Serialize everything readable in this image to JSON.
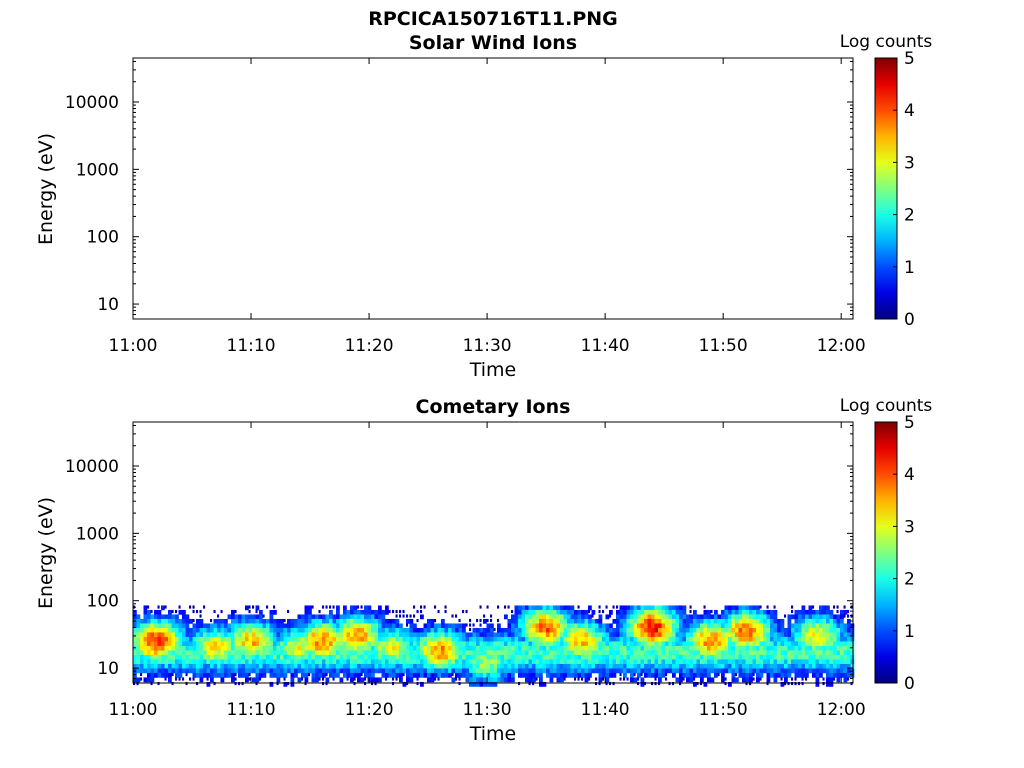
{
  "figure_title": "RPCICA150716T11.PNG",
  "chart_data": [
    {
      "type": "heatmap",
      "title": "Solar Wind Ions",
      "xlabel": "Time",
      "ylabel": "Energy (eV)",
      "x_ticks": [
        "11:00",
        "11:10",
        "11:20",
        "11:30",
        "11:40",
        "11:50",
        "12:00"
      ],
      "y_ticks": [
        "10",
        "100",
        "1000",
        "10000"
      ],
      "y_tick_values": [
        10,
        100,
        1000,
        10000
      ],
      "y_scale": "log",
      "ylim": [
        6,
        45000
      ],
      "xlim": [
        "11:00",
        "12:01"
      ],
      "colorbar": {
        "label": "Log counts",
        "ticks": [
          "0",
          "1",
          "2",
          "3",
          "4",
          "5"
        ],
        "range": [
          0,
          5
        ],
        "colormap": "jet"
      },
      "data": "no counts (empty)",
      "energy_band_top": null
    },
    {
      "type": "heatmap",
      "title": "Cometary Ions",
      "xlabel": "Time",
      "ylabel": "Energy (eV)",
      "x_ticks": [
        "11:00",
        "11:10",
        "11:20",
        "11:30",
        "11:40",
        "11:50",
        "12:00"
      ],
      "y_ticks": [
        "10",
        "100",
        "1000",
        "10000"
      ],
      "y_tick_values": [
        10,
        100,
        1000,
        10000
      ],
      "y_scale": "log",
      "ylim": [
        6,
        45000
      ],
      "xlim": [
        "11:00",
        "12:01"
      ],
      "colorbar": {
        "label": "Log counts",
        "ticks": [
          "0",
          "1",
          "2",
          "3",
          "4",
          "5"
        ],
        "range": [
          0,
          5
        ],
        "colormap": "jet"
      },
      "energy_band_top": 85,
      "energy_band_bottom": 6,
      "peaks_log_counts": [
        {
          "time": "11:02",
          "energy": 25,
          "value": 4.2
        },
        {
          "time": "11:07",
          "energy": 20,
          "value": 3.2
        },
        {
          "time": "11:10",
          "energy": 25,
          "value": 3.5
        },
        {
          "time": "11:14",
          "energy": 20,
          "value": 3.0
        },
        {
          "time": "11:16",
          "energy": 25,
          "value": 3.8
        },
        {
          "time": "11:19",
          "energy": 30,
          "value": 3.6
        },
        {
          "time": "11:22",
          "energy": 20,
          "value": 3.0
        },
        {
          "time": "11:26",
          "energy": 18,
          "value": 3.7
        },
        {
          "time": "11:30",
          "energy": 12,
          "value": 2.6
        },
        {
          "time": "11:35",
          "energy": 40,
          "value": 3.9
        },
        {
          "time": "11:38",
          "energy": 25,
          "value": 3.5
        },
        {
          "time": "11:44",
          "energy": 40,
          "value": 4.3
        },
        {
          "time": "11:49",
          "energy": 25,
          "value": 3.8
        },
        {
          "time": "11:52",
          "energy": 35,
          "value": 3.9
        },
        {
          "time": "11:58",
          "energy": 30,
          "value": 3.2
        }
      ]
    }
  ]
}
